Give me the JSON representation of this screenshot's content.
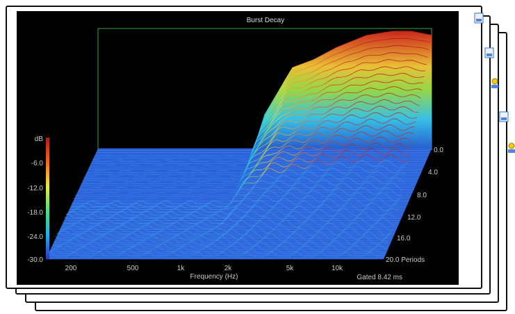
{
  "chart_data": {
    "type": "waterfall-3d",
    "title": "Burst Decay",
    "xlabel": "Frequency (Hz)",
    "x_scale": "log",
    "x_ticks": [
      "200",
      "500",
      "1k",
      "2k",
      "5k",
      "10k"
    ],
    "x_tick_values": [
      200,
      500,
      1000,
      2000,
      5000,
      10000
    ],
    "xlim": [
      120,
      22000
    ],
    "zlabel": "dB",
    "z_ticks": [
      "-6.0",
      "-12.0",
      "-18.0",
      "-24.0",
      "-30.0"
    ],
    "z_tick_values": [
      -6,
      -12,
      -18,
      -24,
      -30
    ],
    "zlim": [
      -30,
      0
    ],
    "depth_ticks": [
      "0.0",
      "4.0",
      "8.0",
      "12.0",
      "16.0",
      "20.0 Periods"
    ],
    "depth_tick_values": [
      0,
      4,
      8,
      12,
      16,
      20
    ],
    "depth_unit": "Periods",
    "footer_note": "Gated 8.42 ms",
    "colormap": [
      "#1f5fd6",
      "#2aa8f0",
      "#38e0d0",
      "#9be04a",
      "#f2e838",
      "#f39a2a",
      "#e23a24",
      "#b01818"
    ],
    "floor_color": "#2a62d8",
    "axis_box_color": "#3aa83a",
    "surface_front_slice": [
      {
        "hz": 120,
        "db": -30
      },
      {
        "hz": 1400,
        "db": -30
      },
      {
        "hz": 1600,
        "db": -22
      },
      {
        "hz": 2000,
        "db": -16
      },
      {
        "hz": 2500,
        "db": -10
      },
      {
        "hz": 3500,
        "db": -8
      },
      {
        "hz": 5000,
        "db": -5
      },
      {
        "hz": 8000,
        "db": -2
      },
      {
        "hz": 12000,
        "db": -1
      },
      {
        "hz": 16000,
        "db": -1
      },
      {
        "hz": 22000,
        "db": -2
      }
    ]
  }
}
